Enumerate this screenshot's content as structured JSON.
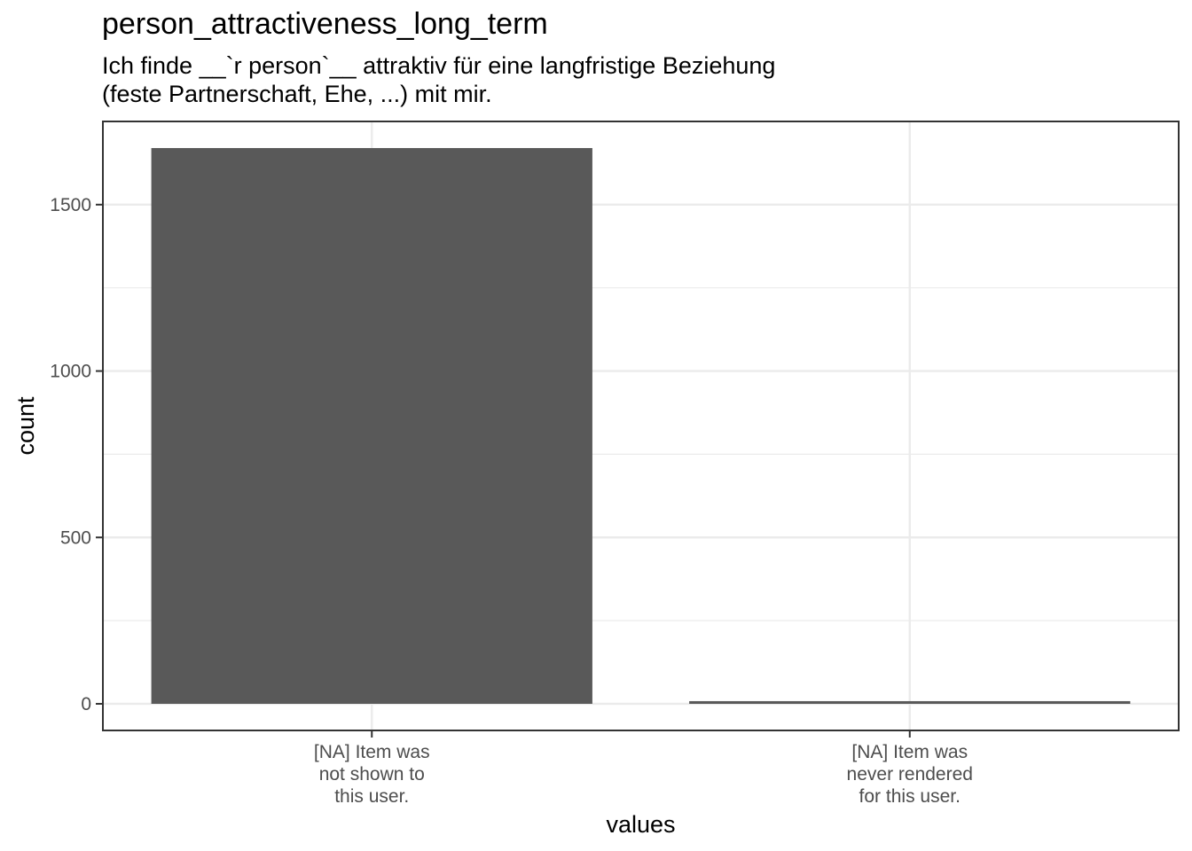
{
  "chart_data": {
    "type": "bar",
    "title": "person_attractiveness_long_term",
    "subtitle": [
      "Ich finde __`r person`__ attraktiv für eine langfristige Beziehung",
      "(feste Partnerschaft, Ehe, ...) mit mir."
    ],
    "xlabel": "values",
    "ylabel": "count",
    "categories": [
      [
        "[NA] Item was",
        "not shown to",
        "this user."
      ],
      [
        "[NA] Item was",
        "never rendered",
        "for this user."
      ]
    ],
    "values": [
      1670,
      8
    ],
    "ylim": [
      -80,
      1750
    ],
    "yticks": [
      0,
      500,
      1000,
      1500
    ],
    "grid": true,
    "colors": {
      "bar": "#595959",
      "grid": "#ebebeb",
      "panel_border": "#333333"
    }
  }
}
